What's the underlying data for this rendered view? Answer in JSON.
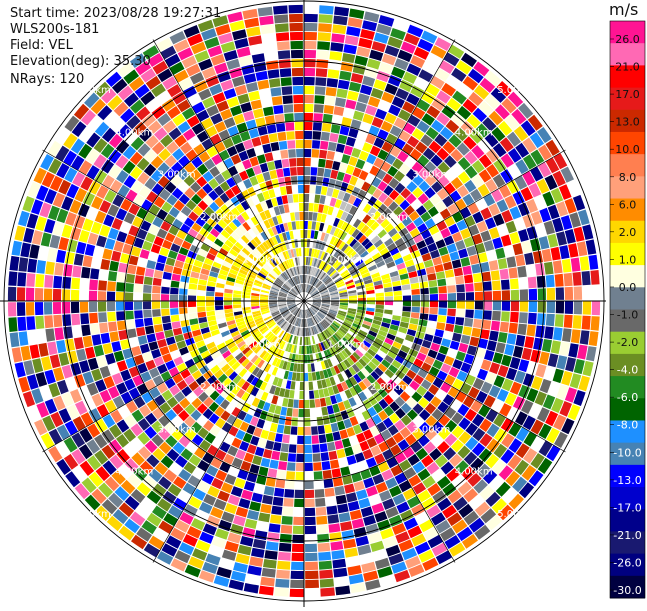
{
  "info": {
    "start_time": "Start time: 2023/08/28 19:27:31",
    "instrument": "WLS200s-181",
    "field": "Field: VEL",
    "elevation": "Elevation(deg): 35.30",
    "nrays": "NRays: 120"
  },
  "chart_data": {
    "type": "heatmap",
    "subtype": "ppi-polar",
    "field": "VEL",
    "units": "m/s",
    "nrays": 120,
    "elevation_deg": 35.3,
    "range_rings_km": [
      1.0,
      2.0,
      3.0,
      4.0,
      5.0
    ],
    "range_ring_labels": [
      "1.00km",
      "2.00km",
      "3.00km",
      "4.00km",
      "5.00km"
    ],
    "colorbar": {
      "ticks": [
        26.0,
        21.0,
        17.0,
        13.0,
        10.0,
        8.0,
        6.0,
        2.0,
        1.0,
        0.0,
        -1.0,
        -2.0,
        -4.0,
        -6.0,
        -8.0,
        -10.0,
        -13.0,
        -17.0,
        -21.0,
        -26.0,
        -30.0
      ],
      "tick_labels": [
        "26.0",
        "21.0",
        "17.0",
        "13.0",
        "10.0",
        "8.0",
        "6.0",
        "2.0",
        "1.0",
        "0.0",
        "-1.0",
        "-2.0",
        "-4.0",
        "-6.0",
        "-8.0",
        "-10.0",
        "-13.0",
        "-17.0",
        "-21.0",
        "-26.0",
        "-30.0"
      ],
      "colors": [
        "#ff1493",
        "#ff69b4",
        "#ff0000",
        "#e61a1a",
        "#cc2900",
        "#ff4500",
        "#ff7f50",
        "#ffa07a",
        "#ff8c00",
        "#ffd700",
        "#ffff00",
        "#ffffe0",
        "#708090",
        "#696969",
        "#9acd32",
        "#6b8e23",
        "#228b22",
        "#006400",
        "#1e90ff",
        "#4682b4",
        "#0000ff",
        "#0000cd",
        "#00008b",
        "#191970",
        "#000080",
        "#000040"
      ]
    },
    "pattern": {
      "inner_yellow_sector_deg": [
        200,
        340
      ],
      "inner_green_sector_deg": [
        90,
        200
      ],
      "inner_gray_core_km": 0.6,
      "noise_starts_km": 2.0
    }
  }
}
